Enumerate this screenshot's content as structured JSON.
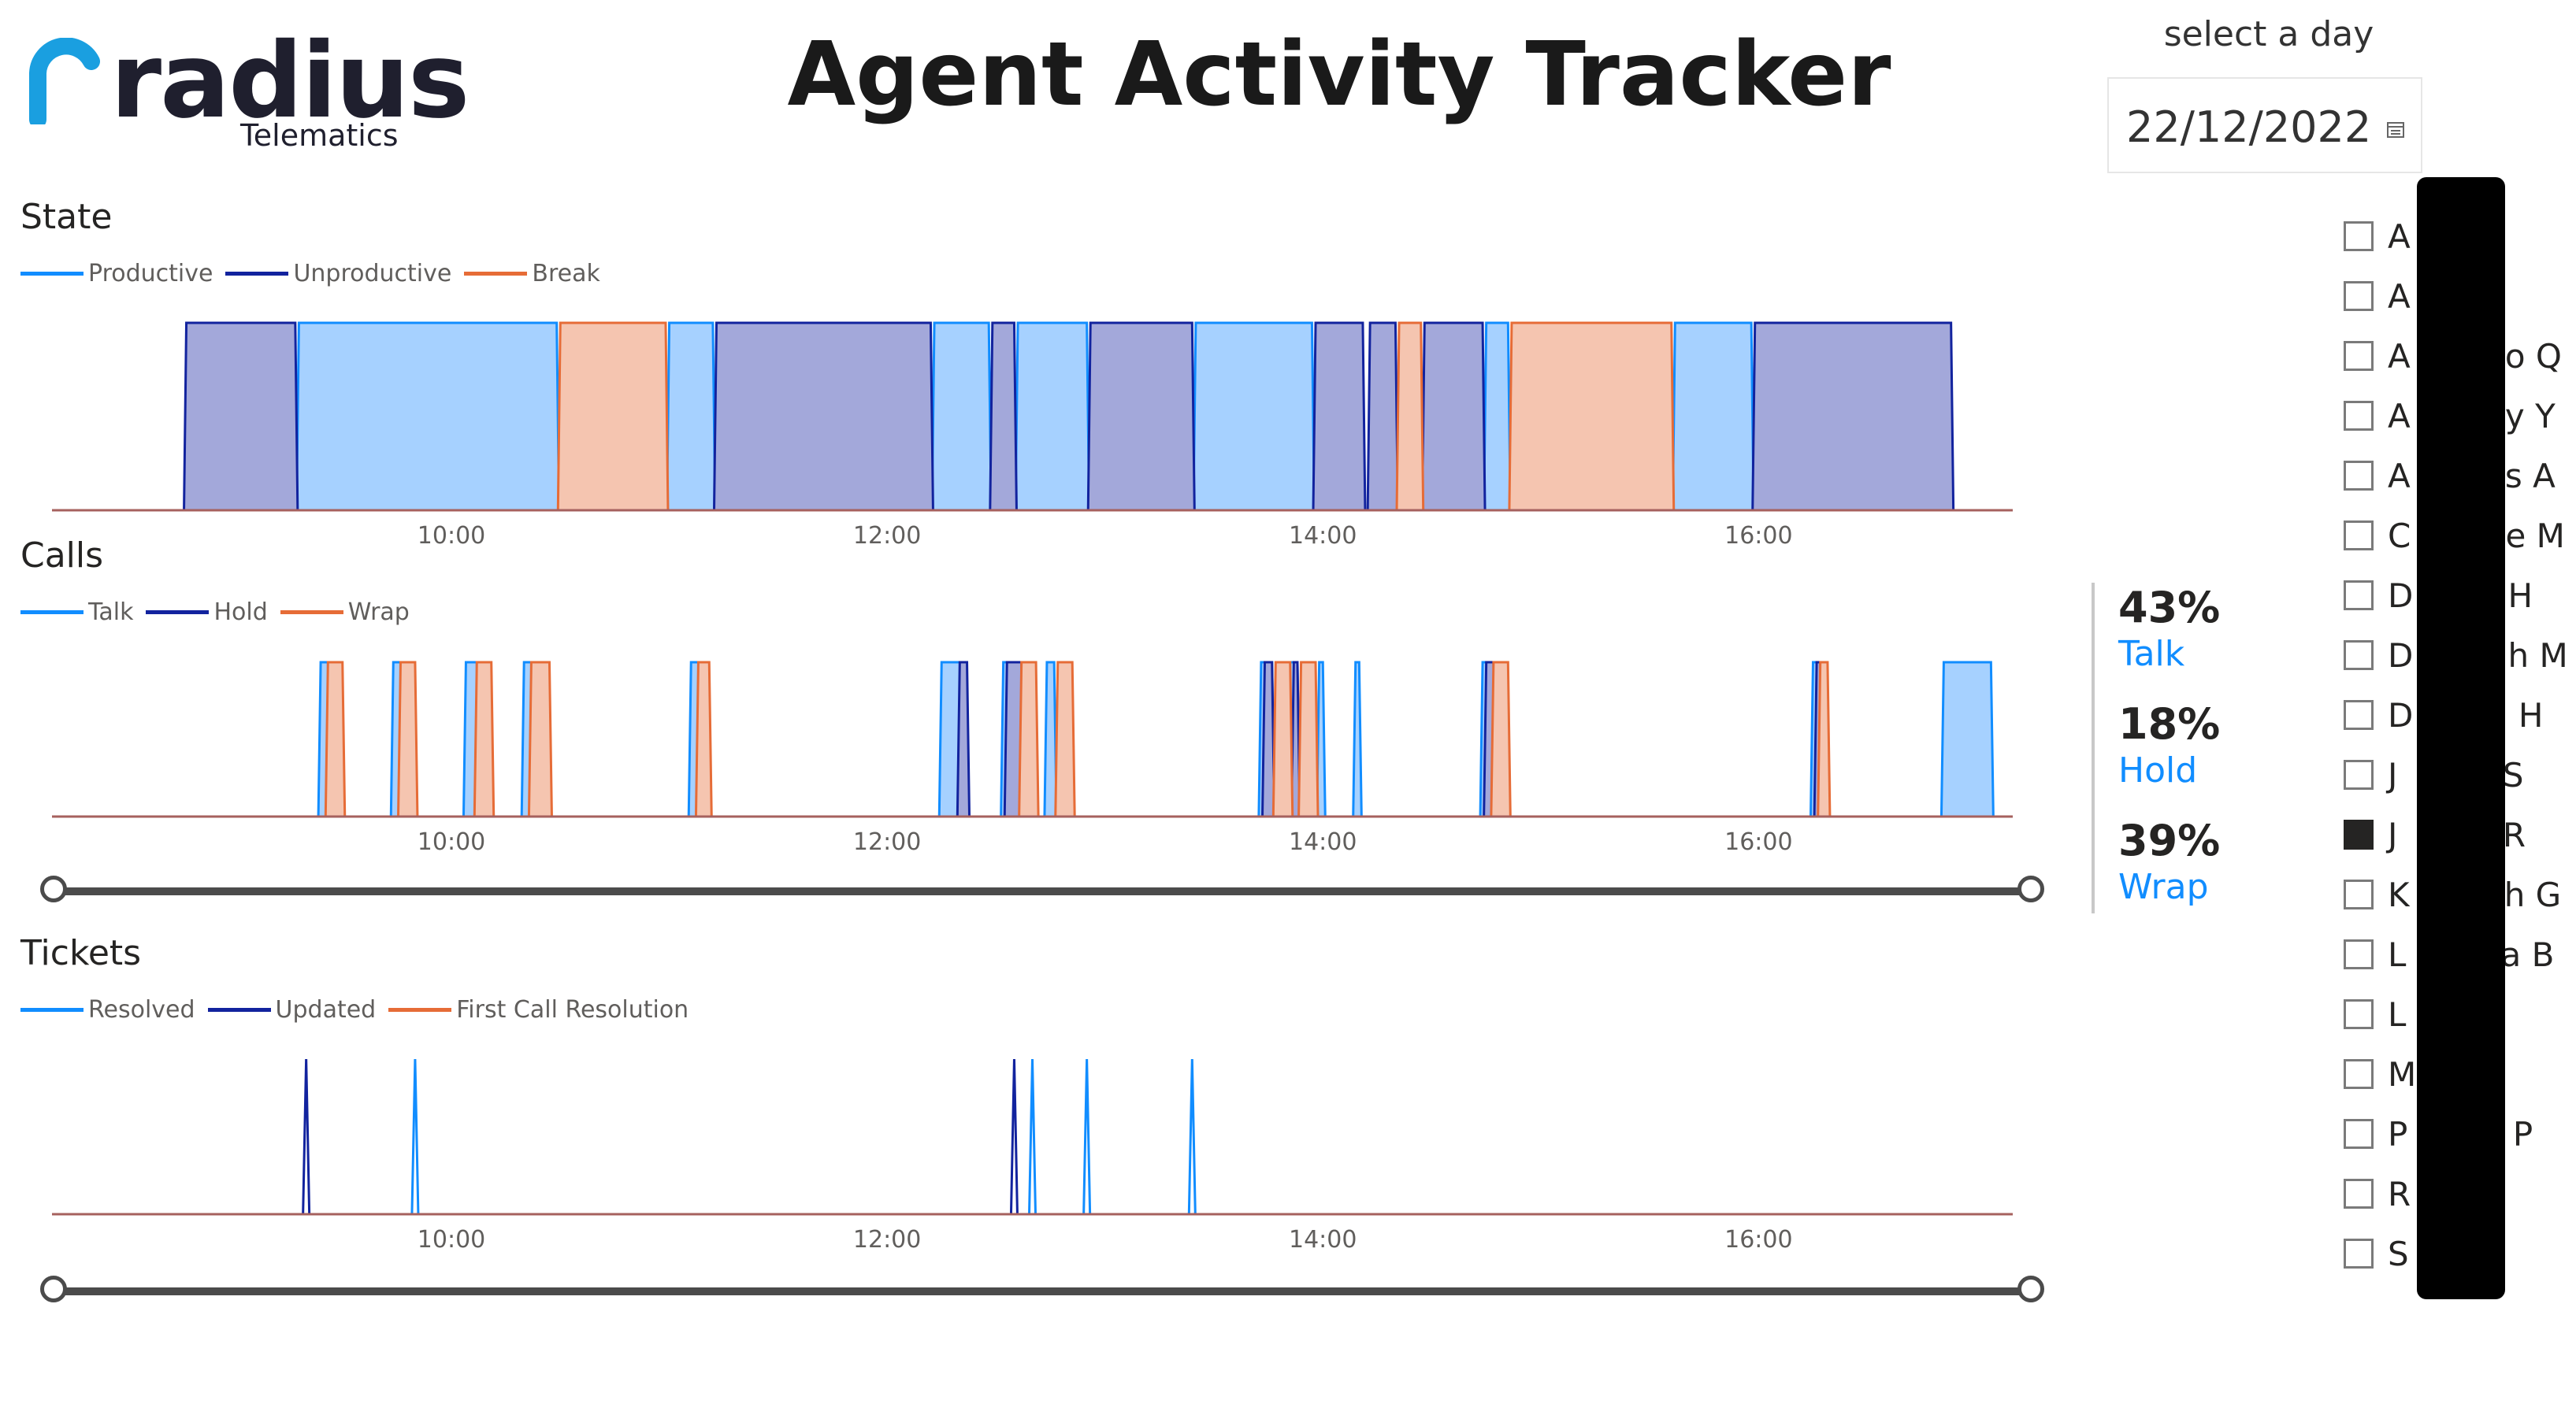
{
  "logo": {
    "word": "radius",
    "subtitle": "Telematics"
  },
  "title": "Agent Activity Tracker",
  "date_filter": {
    "label": "select a day",
    "value": "22/12/2022"
  },
  "state_chart": {
    "title": "State",
    "legend": [
      "Productive",
      "Unproductive",
      "Break"
    ]
  },
  "calls_chart": {
    "title": "Calls",
    "legend": [
      "Talk",
      "Hold",
      "Wrap"
    ]
  },
  "tickets_chart": {
    "title": "Tickets",
    "legend": [
      "Resolved",
      "Updated",
      "First Call Resolution"
    ]
  },
  "colors": {
    "productive": "#118dff",
    "unproductive": "#12239e",
    "break": "#e66c37",
    "productive_fill": "#a6d1ff",
    "unproductive_fill": "#a3a8da",
    "break_fill": "#f5c5b0",
    "axis_line": "#a6615e"
  },
  "kpis": [
    {
      "pct": "43%",
      "label": "Talk"
    },
    {
      "pct": "18%",
      "label": "Hold"
    },
    {
      "pct": "39%",
      "label": "Wrap"
    }
  ],
  "agents": [
    {
      "name": "A",
      "checked": false
    },
    {
      "name": "A",
      "checked": false
    },
    {
      "name": "A         o Q",
      "checked": false
    },
    {
      "name": "A         y Y",
      "checked": false
    },
    {
      "name": "A         s A",
      "checked": false
    },
    {
      "name": "C         e M",
      "checked": false
    },
    {
      "name": "D         H",
      "checked": false
    },
    {
      "name": "D         h M",
      "checked": false
    },
    {
      "name": "D          H",
      "checked": false
    },
    {
      "name": "J          S",
      "checked": false
    },
    {
      "name": "J          R",
      "checked": true
    },
    {
      "name": "K         h G",
      "checked": false
    },
    {
      "name": "L         a B",
      "checked": false
    },
    {
      "name": "L",
      "checked": false
    },
    {
      "name": "M",
      "checked": false
    },
    {
      "name": "P          P",
      "checked": false
    },
    {
      "name": "R",
      "checked": false
    },
    {
      "name": "S",
      "checked": false
    }
  ],
  "chart_data": [
    {
      "type": "area",
      "title": "State",
      "x_ticks": [
        "10:00",
        "12:00",
        "14:00",
        "16:00"
      ],
      "series": [
        {
          "name": "Productive",
          "intervals": [
            [
              "09:18",
              "10:29"
            ],
            [
              "11:00",
              "11:12"
            ],
            [
              "12:13",
              "12:28"
            ],
            [
              "12:36",
              "12:55"
            ],
            [
              "13:25",
              "13:57"
            ],
            [
              "14:45",
              "14:51"
            ],
            [
              "15:37",
              "15:58"
            ]
          ]
        },
        {
          "name": "Unproductive",
          "intervals": [
            [
              "08:47",
              "09:17"
            ],
            [
              "11:13",
              "12:12"
            ],
            [
              "12:29",
              "12:35"
            ],
            [
              "12:56",
              "13:24"
            ],
            [
              "13:58",
              "14:11"
            ],
            [
              "14:13",
              "14:20"
            ],
            [
              "14:28",
              "14:44"
            ],
            [
              "15:59",
              "16:53"
            ]
          ]
        },
        {
          "name": "Break",
          "intervals": [
            [
              "10:30",
              "10:59"
            ],
            [
              "14:21",
              "14:27"
            ],
            [
              "14:52",
              "15:36"
            ]
          ]
        }
      ]
    },
    {
      "type": "area",
      "title": "Calls",
      "x_ticks": [
        "10:00",
        "12:00",
        "14:00",
        "16:00"
      ],
      "series": [
        {
          "name": "Talk",
          "intervals": [
            [
              "09:24",
              "09:26"
            ],
            [
              "09:44",
              "09:46"
            ],
            [
              "10:04",
              "10:07"
            ],
            [
              "10:20",
              "10:22"
            ],
            [
              "11:06",
              "11:08"
            ],
            [
              "12:15",
              "12:21"
            ],
            [
              "12:32",
              "12:36"
            ],
            [
              "12:44",
              "12:46"
            ],
            [
              "13:43",
              "13:46"
            ],
            [
              "13:51",
              "13:53"
            ],
            [
              "13:59",
              "14:00"
            ],
            [
              "14:09",
              "14:10"
            ],
            [
              "14:44",
              "14:46"
            ],
            [
              "16:15",
              "16:16"
            ],
            [
              "16:51",
              "17:04"
            ]
          ]
        },
        {
          "name": "Hold",
          "intervals": [
            [
              "12:20",
              "12:22"
            ],
            [
              "12:33",
              "12:37"
            ],
            [
              "13:44",
              "13:46"
            ],
            [
              "13:52",
              "13:53"
            ],
            [
              "14:45",
              "14:47"
            ],
            [
              "16:16",
              "16:17"
            ]
          ]
        },
        {
          "name": "Wrap",
          "intervals": [
            [
              "09:26",
              "09:30"
            ],
            [
              "09:46",
              "09:50"
            ],
            [
              "10:07",
              "10:11"
            ],
            [
              "10:22",
              "10:27"
            ],
            [
              "11:08",
              "11:11"
            ],
            [
              "12:37",
              "12:41"
            ],
            [
              "12:47",
              "12:51"
            ],
            [
              "13:47",
              "13:51"
            ],
            [
              "13:54",
              "13:58"
            ],
            [
              "14:47",
              "14:51"
            ],
            [
              "16:17",
              "16:19"
            ]
          ]
        }
      ]
    },
    {
      "type": "line",
      "title": "Tickets",
      "x_ticks": [
        "10:00",
        "12:00",
        "14:00",
        "16:00"
      ],
      "series": [
        {
          "name": "Resolved",
          "spikes": [
            "09:50",
            "12:40",
            "12:55",
            "13:24"
          ]
        },
        {
          "name": "Updated",
          "spikes": [
            "09:20",
            "12:35"
          ]
        },
        {
          "name": "First Call Resolution",
          "spikes": []
        }
      ]
    }
  ]
}
